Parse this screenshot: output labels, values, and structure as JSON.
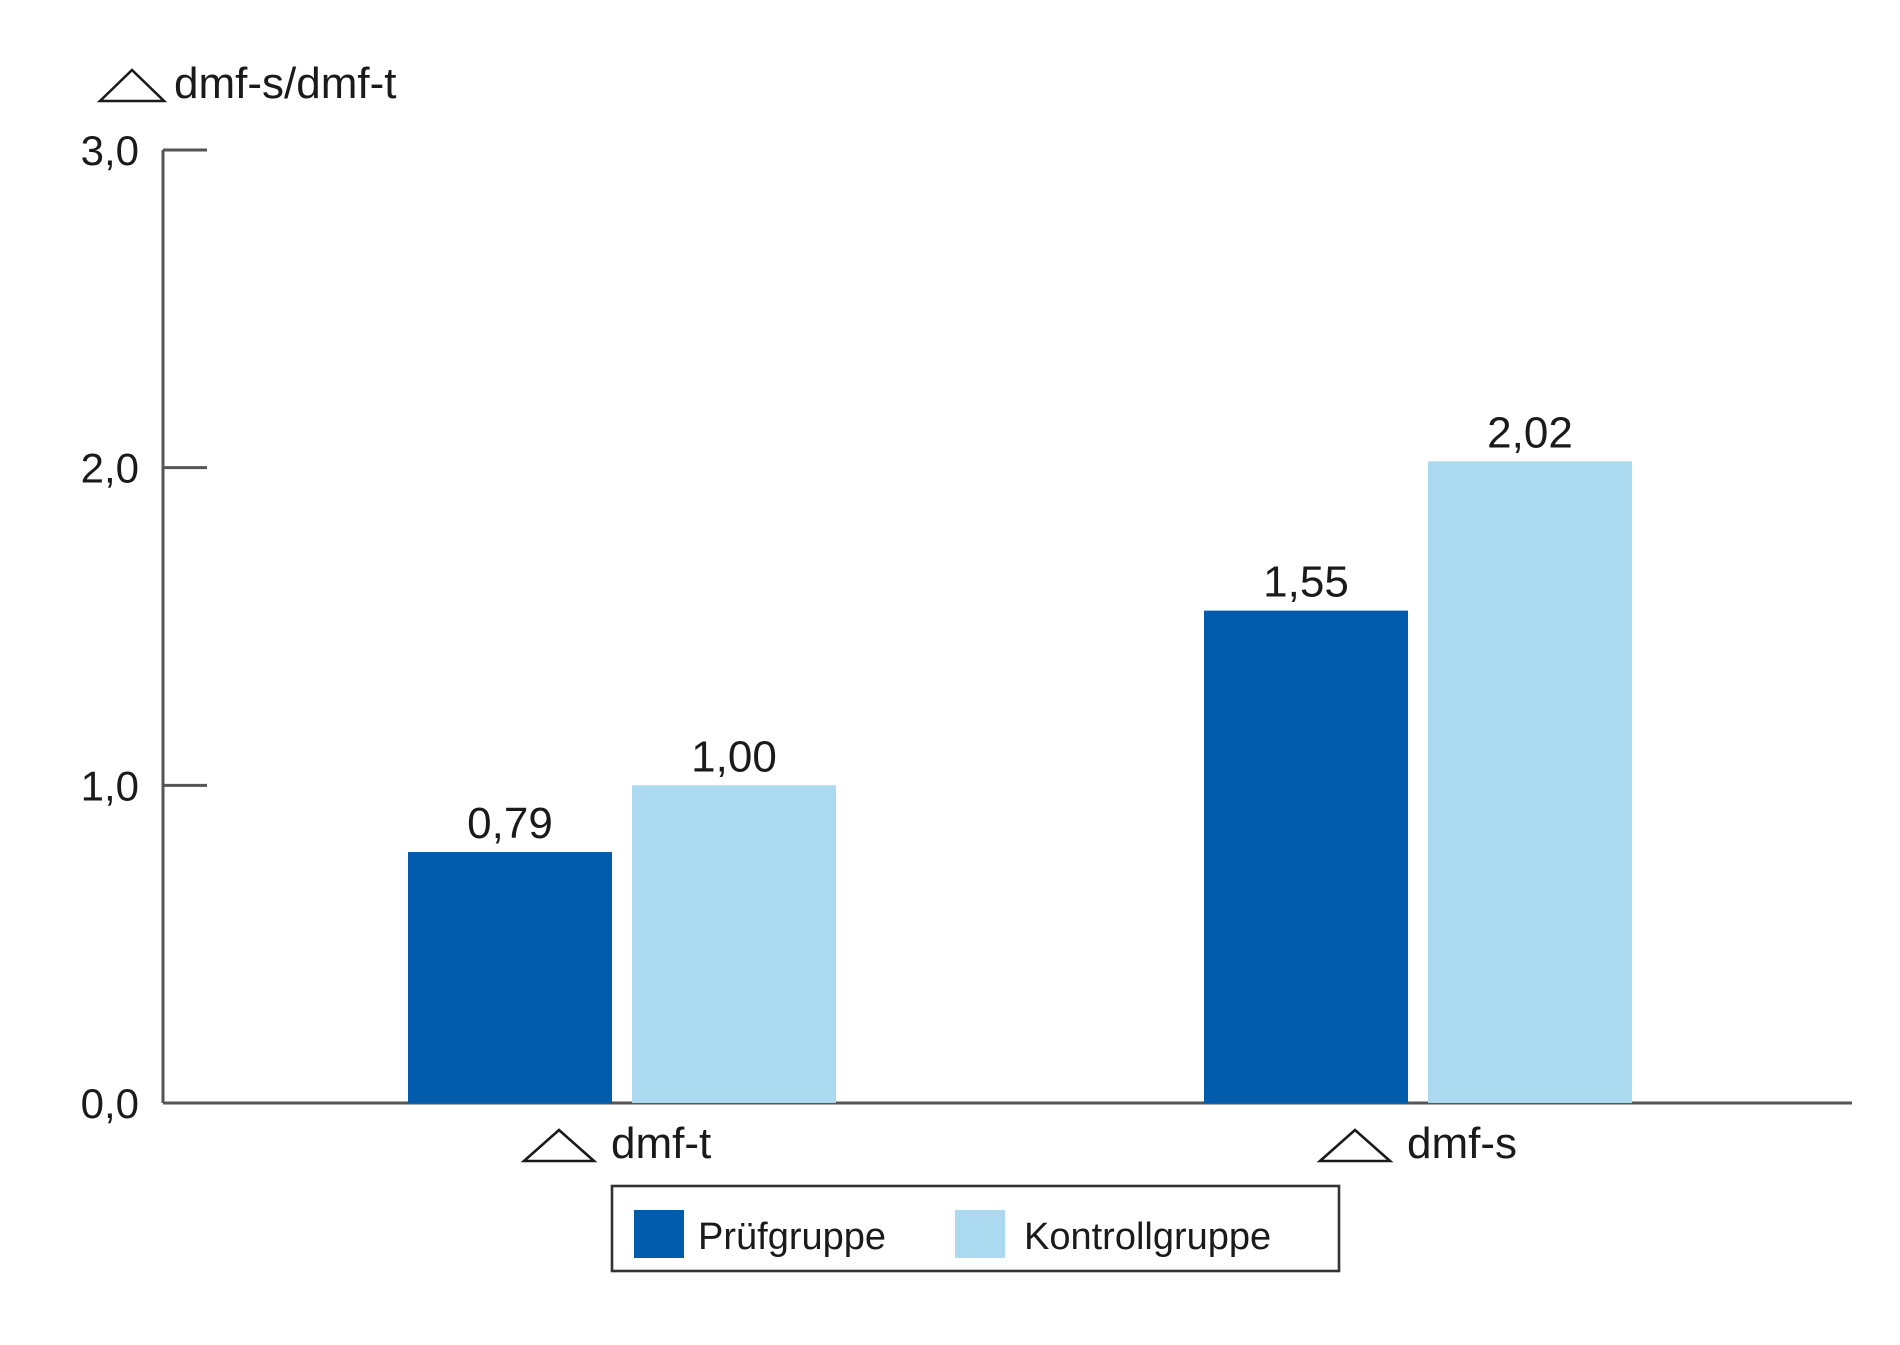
{
  "chart_data": {
    "type": "bar",
    "title": "",
    "ylabel": "dmf-s/dmf-t",
    "xlabel": "",
    "ylim": [
      0,
      3
    ],
    "yticks": [
      0,
      1,
      2,
      3
    ],
    "ytick_labels": [
      "0,0",
      "1,0",
      "2,0",
      "3,0"
    ],
    "categories": [
      "dmf-t",
      "dmf-s"
    ],
    "category_marker": "delta-triangle",
    "series": [
      {
        "name": "Prüfgruppe",
        "color": "#005BAC",
        "values": [
          0.79,
          1.55
        ],
        "labels": [
          "0,79",
          "1,55"
        ]
      },
      {
        "name": "Kontrollgruppe",
        "color": "#ABD9F0",
        "values": [
          1.0,
          2.02
        ],
        "labels": [
          "1,00",
          "2,02"
        ]
      }
    ],
    "grid": false,
    "legend_position": "bottom-center",
    "axis_color": "#555555"
  }
}
